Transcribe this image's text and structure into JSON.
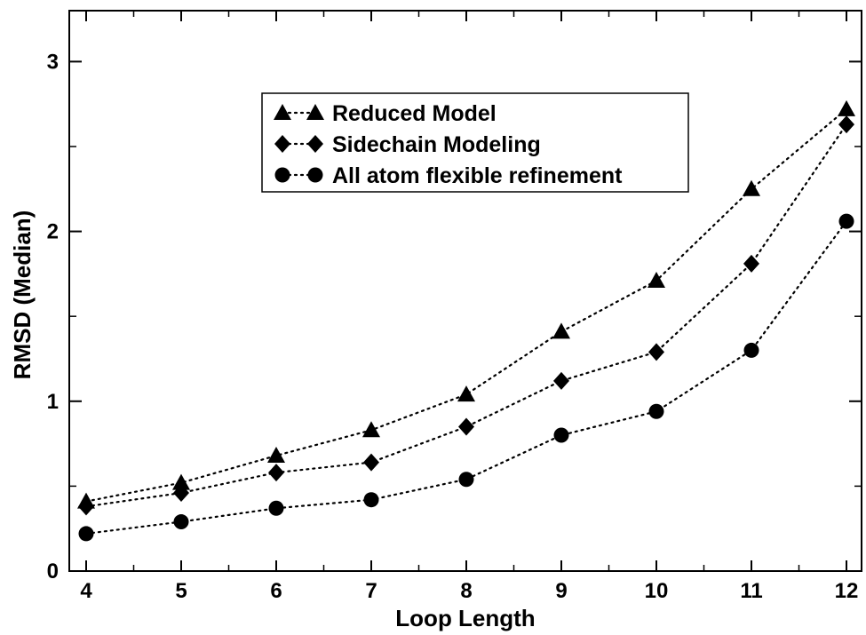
{
  "chart_data": {
    "type": "line",
    "title": "",
    "xlabel": "Loop Length",
    "ylabel": "RMSD (Median)",
    "x": [
      4,
      5,
      6,
      7,
      8,
      9,
      10,
      11,
      12
    ],
    "xlim": [
      4,
      12
    ],
    "ylim": [
      0,
      3.3
    ],
    "xticks": [
      "4",
      "5",
      "6",
      "7",
      "8",
      "9",
      "10",
      "11",
      "12"
    ],
    "yticks": [
      "0",
      "1",
      "2",
      "3"
    ],
    "grid": false,
    "legend_position": "top-center",
    "series": [
      {
        "name": "Reduced Model",
        "marker": "triangle",
        "line_style": "dotted",
        "values": [
          0.41,
          0.52,
          0.68,
          0.83,
          1.04,
          1.41,
          1.71,
          2.25,
          2.72
        ]
      },
      {
        "name": "Sidechain Modeling",
        "marker": "diamond",
        "line_style": "dotted",
        "values": [
          0.38,
          0.46,
          0.58,
          0.64,
          0.85,
          1.12,
          1.29,
          1.81,
          2.63
        ]
      },
      {
        "name": "All atom flexible refinement",
        "marker": "circle",
        "line_style": "dotted",
        "values": [
          0.22,
          0.29,
          0.37,
          0.42,
          0.54,
          0.8,
          0.94,
          1.3,
          2.06
        ]
      }
    ],
    "colors": {
      "line": "#000000",
      "marker": "#000000",
      "background": "#ffffff"
    }
  }
}
